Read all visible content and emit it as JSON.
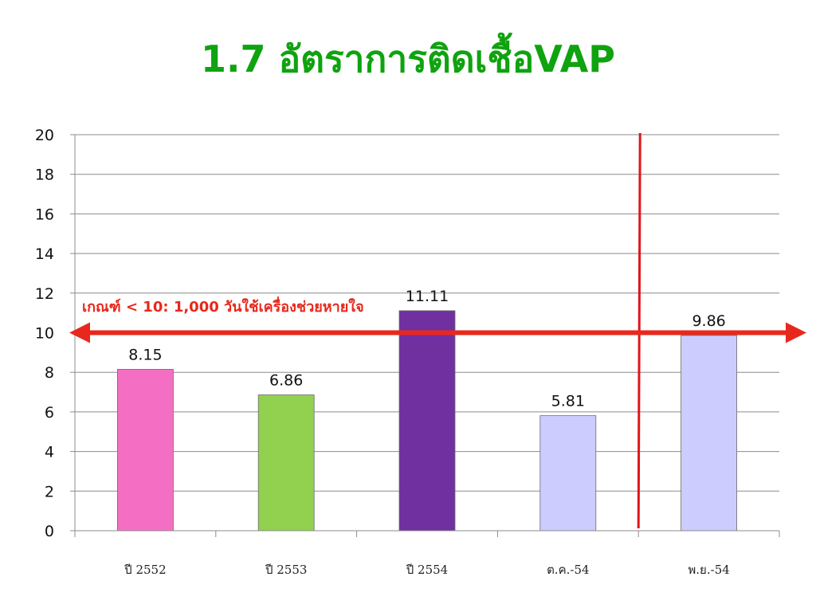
{
  "title": "1.7 อัตราการติดเชื้อVAP",
  "colors": {
    "title": "#0fa30f",
    "criteria": "#e8281c",
    "marker_line": "#e0151a",
    "grid": "#8c8c8c"
  },
  "chart_data": {
    "type": "bar",
    "categories": [
      "ปี 2552",
      "ปี 2553",
      "ปี 2554",
      "ต.ค.-54",
      "พ.ย.-54"
    ],
    "values": [
      8.15,
      6.86,
      11.11,
      5.81,
      9.86
    ],
    "value_labels": [
      "8.15",
      "6.86",
      "11.11",
      "5.81",
      "9.86"
    ],
    "bar_colors": [
      "#f46fc4",
      "#92d050",
      "#7030a0",
      "#ccccff",
      "#ccccff"
    ],
    "ylim": [
      0,
      20
    ],
    "yticks": [
      0,
      2,
      4,
      6,
      8,
      10,
      12,
      14,
      16,
      18,
      20
    ],
    "grid": true,
    "threshold": {
      "value": 10,
      "label": "เกณฑ์ < 10: 1,000 วันใช้เครื่องช่วยหายใจ"
    },
    "divider_between": [
      3,
      4
    ]
  }
}
